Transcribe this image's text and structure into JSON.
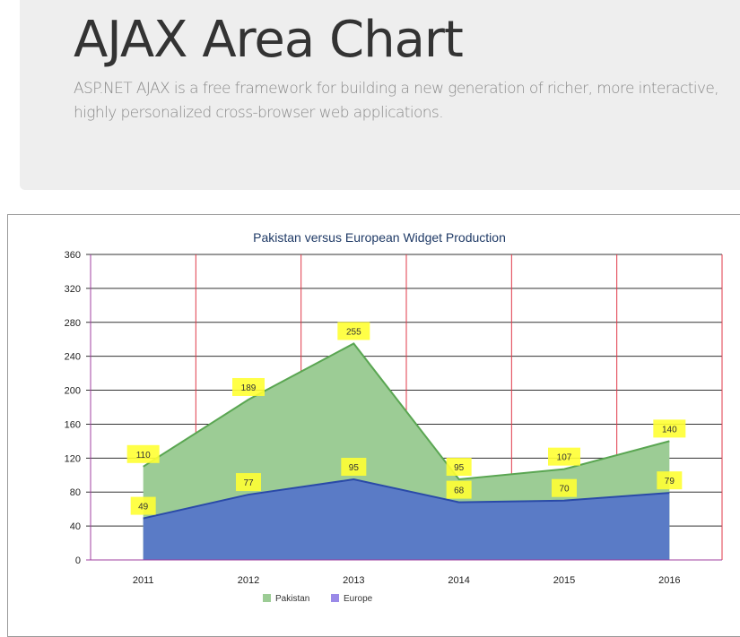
{
  "header": {
    "title": "AJAX Area Chart",
    "lead": "ASP.NET AJAX is a free framework for building a new generation of richer, more interactive, highly personalized cross-browser web applications."
  },
  "colors": {
    "pakistan_fill": "#9ccc95",
    "pakistan_line": "#5aa652",
    "europe_fill": "#5a7bc6",
    "europe_line": "#2a4aa8",
    "label_bg": "#ffff33",
    "grid_x": "#e03a4a",
    "grid_y": "#333333",
    "title": "#1f3a66"
  },
  "chart_data": {
    "type": "area",
    "title": "Pakistan versus European Widget Production",
    "xlabel": "",
    "ylabel": "",
    "categories": [
      "2011",
      "2012",
      "2013",
      "2014",
      "2015",
      "2016"
    ],
    "y_ticks": [
      "0",
      "40",
      "80",
      "120",
      "160",
      "200",
      "240",
      "280",
      "320",
      "360"
    ],
    "ylim": [
      0,
      360
    ],
    "grid": true,
    "legend_position": "bottom",
    "series": [
      {
        "name": "Pakistan",
        "values": [
          110,
          189,
          255,
          95,
          107,
          140
        ]
      },
      {
        "name": "Europe",
        "values": [
          49,
          77,
          95,
          68,
          70,
          79
        ]
      }
    ]
  }
}
